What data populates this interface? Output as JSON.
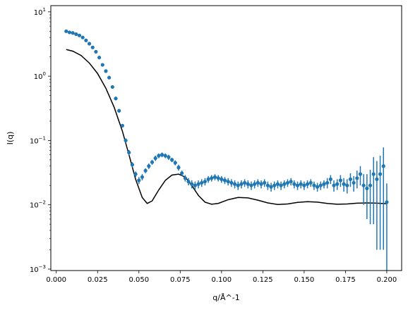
{
  "chart_data": {
    "type": "scatter",
    "title": "",
    "xlabel": "q/Å^-1",
    "ylabel": "I(q)",
    "x_scale": "linear",
    "y_scale": "log",
    "xlim": [
      -0.0033,
      0.209
    ],
    "ylim": [
      0.00095,
      12.5
    ],
    "grid": false,
    "legend": "none",
    "x_ticks": [
      {
        "value": 0.0,
        "label": "0.000"
      },
      {
        "value": 0.025,
        "label": "0.025"
      },
      {
        "value": 0.05,
        "label": "0.050"
      },
      {
        "value": 0.075,
        "label": "0.075"
      },
      {
        "value": 0.1,
        "label": "0.100"
      },
      {
        "value": 0.125,
        "label": "0.125"
      },
      {
        "value": 0.15,
        "label": "0.150"
      },
      {
        "value": 0.175,
        "label": "0.175"
      },
      {
        "value": 0.2,
        "label": "0.200"
      }
    ],
    "y_ticks": [
      {
        "value": 0.001,
        "base": "10",
        "exp": "−3"
      },
      {
        "value": 0.01,
        "base": "10",
        "exp": "−2"
      },
      {
        "value": 0.1,
        "base": "10",
        "exp": "−1"
      },
      {
        "value": 1,
        "base": "10",
        "exp": "0"
      },
      {
        "value": 10,
        "base": "10",
        "exp": "1"
      }
    ],
    "series": [
      {
        "kind": "data-with-error-bars",
        "color": "#1f77b4",
        "points": [
          [
            0.006,
            5.0,
            0.2
          ],
          [
            0.008,
            4.8,
            0.2
          ],
          [
            0.01,
            4.7,
            0.2
          ],
          [
            0.012,
            4.5,
            0.2
          ],
          [
            0.014,
            4.3,
            0.2
          ],
          [
            0.016,
            4.0,
            0.2
          ],
          [
            0.018,
            3.6,
            0.2
          ],
          [
            0.02,
            3.2,
            0.2
          ],
          [
            0.022,
            2.8,
            0.15
          ],
          [
            0.024,
            2.4,
            0.12
          ],
          [
            0.026,
            1.95,
            0.1
          ],
          [
            0.028,
            1.5,
            0.08
          ],
          [
            0.03,
            1.2,
            0.07
          ],
          [
            0.032,
            0.95,
            0.05
          ],
          [
            0.034,
            0.68,
            0.04
          ],
          [
            0.036,
            0.45,
            0.03
          ],
          [
            0.038,
            0.29,
            0.02
          ],
          [
            0.04,
            0.17,
            0.01
          ],
          [
            0.042,
            0.1,
            0.008
          ],
          [
            0.044,
            0.065,
            0.006
          ],
          [
            0.046,
            0.042,
            0.004
          ],
          [
            0.048,
            0.03,
            0.003
          ],
          [
            0.05,
            0.024,
            0.003
          ],
          [
            0.052,
            0.027,
            0.003
          ],
          [
            0.054,
            0.034,
            0.003
          ],
          [
            0.056,
            0.04,
            0.004
          ],
          [
            0.058,
            0.046,
            0.004
          ],
          [
            0.06,
            0.053,
            0.005
          ],
          [
            0.062,
            0.058,
            0.005
          ],
          [
            0.064,
            0.06,
            0.005
          ],
          [
            0.066,
            0.058,
            0.005
          ],
          [
            0.068,
            0.055,
            0.005
          ],
          [
            0.07,
            0.05,
            0.004
          ],
          [
            0.072,
            0.045,
            0.004
          ],
          [
            0.074,
            0.038,
            0.004
          ],
          [
            0.076,
            0.031,
            0.003
          ],
          [
            0.078,
            0.026,
            0.003
          ],
          [
            0.08,
            0.023,
            0.003
          ],
          [
            0.082,
            0.021,
            0.003
          ],
          [
            0.084,
            0.02,
            0.003
          ],
          [
            0.086,
            0.021,
            0.003
          ],
          [
            0.088,
            0.022,
            0.003
          ],
          [
            0.09,
            0.023,
            0.003
          ],
          [
            0.092,
            0.025,
            0.003
          ],
          [
            0.094,
            0.026,
            0.003
          ],
          [
            0.096,
            0.027,
            0.003
          ],
          [
            0.098,
            0.026,
            0.003
          ],
          [
            0.1,
            0.025,
            0.003
          ],
          [
            0.102,
            0.024,
            0.003
          ],
          [
            0.104,
            0.023,
            0.003
          ],
          [
            0.106,
            0.022,
            0.003
          ],
          [
            0.108,
            0.021,
            0.003
          ],
          [
            0.11,
            0.02,
            0.003
          ],
          [
            0.112,
            0.021,
            0.003
          ],
          [
            0.114,
            0.022,
            0.003
          ],
          [
            0.116,
            0.021,
            0.003
          ],
          [
            0.118,
            0.02,
            0.003
          ],
          [
            0.12,
            0.021,
            0.003
          ],
          [
            0.122,
            0.022,
            0.003
          ],
          [
            0.124,
            0.021,
            0.003
          ],
          [
            0.126,
            0.022,
            0.003
          ],
          [
            0.128,
            0.02,
            0.003
          ],
          [
            0.13,
            0.019,
            0.003
          ],
          [
            0.132,
            0.02,
            0.003
          ],
          [
            0.134,
            0.021,
            0.003
          ],
          [
            0.136,
            0.02,
            0.003
          ],
          [
            0.138,
            0.021,
            0.003
          ],
          [
            0.14,
            0.022,
            0.003
          ],
          [
            0.142,
            0.023,
            0.003
          ],
          [
            0.144,
            0.021,
            0.003
          ],
          [
            0.146,
            0.02,
            0.003
          ],
          [
            0.148,
            0.021,
            0.003
          ],
          [
            0.15,
            0.02,
            0.003
          ],
          [
            0.152,
            0.021,
            0.003
          ],
          [
            0.154,
            0.022,
            0.003
          ],
          [
            0.156,
            0.02,
            0.003
          ],
          [
            0.158,
            0.019,
            0.003
          ],
          [
            0.16,
            0.02,
            0.003
          ],
          [
            0.162,
            0.021,
            0.003
          ],
          [
            0.164,
            0.022,
            0.004
          ],
          [
            0.166,
            0.025,
            0.004
          ],
          [
            0.168,
            0.02,
            0.004
          ],
          [
            0.17,
            0.021,
            0.004
          ],
          [
            0.172,
            0.024,
            0.005
          ],
          [
            0.174,
            0.021,
            0.005
          ],
          [
            0.176,
            0.02,
            0.005
          ],
          [
            0.178,
            0.025,
            0.006
          ],
          [
            0.18,
            0.022,
            0.006
          ],
          [
            0.182,
            0.026,
            0.008
          ],
          [
            0.184,
            0.03,
            0.01
          ],
          [
            0.186,
            0.02,
            0.01
          ],
          [
            0.188,
            0.018,
            0.012
          ],
          [
            0.19,
            0.02,
            0.015
          ],
          [
            0.192,
            0.03,
            0.025
          ],
          [
            0.194,
            0.025,
            0.023
          ],
          [
            0.196,
            0.03,
            0.028
          ],
          [
            0.198,
            0.04,
            0.038
          ],
          [
            0.2,
            0.011,
            0.0105
          ]
        ]
      },
      {
        "kind": "model-curve",
        "color": "#000000",
        "points": [
          [
            0.006,
            2.6
          ],
          [
            0.01,
            2.45
          ],
          [
            0.015,
            2.1
          ],
          [
            0.02,
            1.6
          ],
          [
            0.025,
            1.1
          ],
          [
            0.03,
            0.65
          ],
          [
            0.035,
            0.33
          ],
          [
            0.04,
            0.14
          ],
          [
            0.044,
            0.06
          ],
          [
            0.048,
            0.025
          ],
          [
            0.052,
            0.013
          ],
          [
            0.055,
            0.0105
          ],
          [
            0.058,
            0.0115
          ],
          [
            0.062,
            0.017
          ],
          [
            0.066,
            0.024
          ],
          [
            0.07,
            0.029
          ],
          [
            0.074,
            0.03
          ],
          [
            0.078,
            0.027
          ],
          [
            0.082,
            0.02
          ],
          [
            0.086,
            0.014
          ],
          [
            0.09,
            0.011
          ],
          [
            0.094,
            0.0102
          ],
          [
            0.098,
            0.0105
          ],
          [
            0.104,
            0.012
          ],
          [
            0.11,
            0.013
          ],
          [
            0.116,
            0.0128
          ],
          [
            0.122,
            0.0118
          ],
          [
            0.128,
            0.0107
          ],
          [
            0.134,
            0.0101
          ],
          [
            0.14,
            0.0103
          ],
          [
            0.146,
            0.0109
          ],
          [
            0.152,
            0.0112
          ],
          [
            0.158,
            0.011
          ],
          [
            0.164,
            0.0105
          ],
          [
            0.17,
            0.0102
          ],
          [
            0.176,
            0.0103
          ],
          [
            0.182,
            0.0106
          ],
          [
            0.188,
            0.0107
          ],
          [
            0.194,
            0.0106
          ],
          [
            0.2,
            0.0104
          ]
        ]
      }
    ]
  }
}
